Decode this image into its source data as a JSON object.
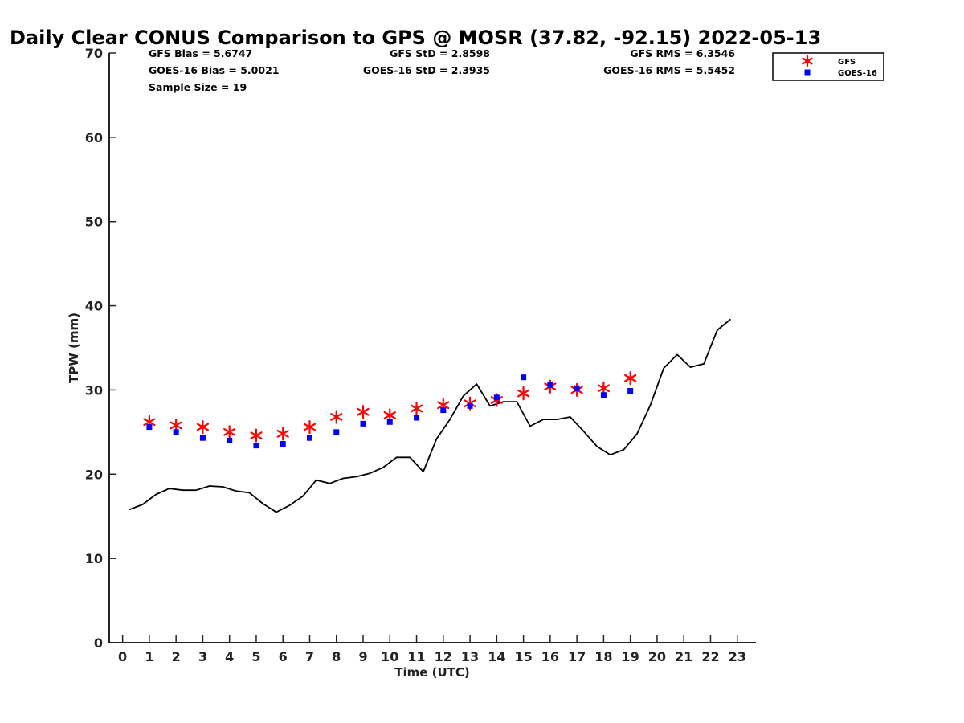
{
  "chart_data": {
    "type": "scatter",
    "title": "Daily Clear CONUS Comparison to GPS @ MOSR (37.82, -92.15) 2022-05-13",
    "xlabel": "Time (UTC)",
    "ylabel": "TPW (mm)",
    "xlim": [
      -0.5,
      23.7
    ],
    "ylim": [
      0,
      70
    ],
    "xticks": [
      "0",
      "1",
      "2",
      "3",
      "4",
      "5",
      "6",
      "7",
      "8",
      "9",
      "10",
      "11",
      "12",
      "13",
      "14",
      "15",
      "16",
      "17",
      "18",
      "19",
      "20",
      "21",
      "22",
      "23"
    ],
    "yticks": [
      "0",
      "10",
      "20",
      "30",
      "40",
      "50",
      "60",
      "70"
    ],
    "grid": false,
    "legend_position": "top-right",
    "stats": {
      "gfs_bias": "GFS Bias = 5.6747",
      "goes_bias": "GOES-16 Bias = 5.0021",
      "sample_size": "Sample Size = 19",
      "gfs_std": "GFS StD = 2.8598",
      "goes_std": "GOES-16 StD = 2.3935",
      "gfs_rms": "GFS RMS = 6.3546",
      "goes_rms": "GOES-16 RMS = 5.5452"
    },
    "series": [
      {
        "name": "GFS",
        "marker": "asterisk",
        "color": "#ff0000",
        "x": [
          1,
          2,
          3,
          4,
          5,
          6,
          7,
          8,
          9,
          10,
          11,
          12,
          13,
          14,
          15,
          16,
          17,
          18,
          19
        ],
        "values": [
          26.2,
          25.8,
          25.6,
          25.0,
          24.6,
          24.8,
          25.6,
          26.8,
          27.4,
          27.0,
          27.8,
          28.2,
          28.4,
          28.8,
          29.6,
          30.4,
          30.0,
          30.2,
          31.4
        ]
      },
      {
        "name": "GOES-16",
        "marker": "square",
        "color": "#0000ff",
        "x": [
          1,
          2,
          3,
          4,
          5,
          6,
          7,
          8,
          9,
          10,
          11,
          12,
          13,
          14,
          15,
          16,
          17,
          18,
          19
        ],
        "values": [
          25.6,
          25.0,
          24.3,
          24.0,
          23.4,
          23.6,
          24.3,
          25.0,
          26.0,
          26.2,
          26.7,
          27.6,
          28.1,
          29.1,
          31.5,
          30.6,
          30.2,
          29.4,
          29.9
        ]
      },
      {
        "name": "GPS",
        "marker": "line",
        "color": "#000000",
        "x": [
          0.25,
          0.75,
          1.25,
          1.75,
          2.25,
          2.75,
          3.25,
          3.75,
          4.25,
          4.75,
          5.25,
          5.75,
          6.25,
          6.75,
          7.25,
          7.75,
          8.25,
          8.75,
          9.25,
          9.75,
          10.25,
          10.75,
          11.25,
          11.75,
          12.25,
          12.75,
          13.25,
          13.75,
          14.25,
          14.75,
          15.25,
          15.75,
          16.25,
          16.75,
          17.25,
          17.75,
          18.25,
          18.75,
          19.25,
          19.75,
          20.25,
          20.75,
          21.25,
          21.75,
          22.25,
          22.75
        ],
        "values": [
          15.8,
          16.4,
          17.6,
          18.3,
          18.1,
          18.1,
          18.6,
          18.5,
          18.0,
          17.8,
          16.5,
          15.5,
          16.3,
          17.4,
          19.3,
          18.9,
          19.5,
          19.7,
          20.1,
          20.8,
          22.0,
          22.0,
          20.3,
          24.2,
          26.5,
          29.3,
          30.7,
          28.1,
          28.6,
          28.6,
          25.7,
          26.5,
          26.5,
          26.8,
          25.1,
          23.3,
          22.3,
          22.9,
          24.8,
          28.2,
          32.6,
          34.2,
          32.7,
          33.1,
          37.1,
          38.4
        ]
      }
    ],
    "legend": [
      {
        "label": "GFS",
        "color": "#ff0000",
        "marker": "asterisk"
      },
      {
        "label": "GOES-16",
        "color": "#0000ff",
        "marker": "square"
      }
    ]
  }
}
